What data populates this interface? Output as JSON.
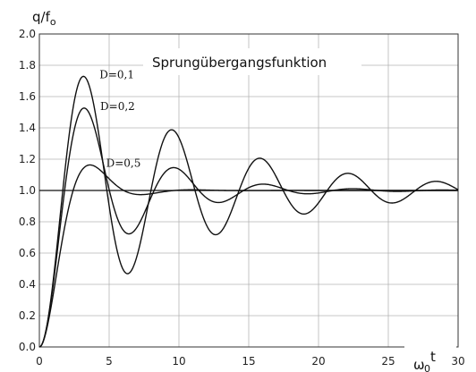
{
  "chart_data": {
    "type": "line",
    "title": "Sprungübergangsfunktion",
    "ylabel": {
      "main": "q/f",
      "sub": "o"
    },
    "xlabel": {
      "main": "ω",
      "sub": "0",
      "sup": "t"
    },
    "xlim": [
      0,
      30
    ],
    "ylim": [
      0,
      2.0
    ],
    "xticks": [
      "0",
      "5",
      "10",
      "15",
      "20",
      "25",
      "30"
    ],
    "yticks": [
      "0.0",
      "0.2",
      "0.4",
      "0.6",
      "0.8",
      "1.0",
      "1.2",
      "1.4",
      "1.6",
      "1.8",
      "2.0"
    ],
    "grid": true,
    "reference_y": 1.0,
    "series": [
      {
        "name": "D=0,1",
        "damping": 0.1
      },
      {
        "name": "D=0,2",
        "damping": 0.2
      },
      {
        "name": "D=0,5",
        "damping": 0.5
      }
    ]
  }
}
